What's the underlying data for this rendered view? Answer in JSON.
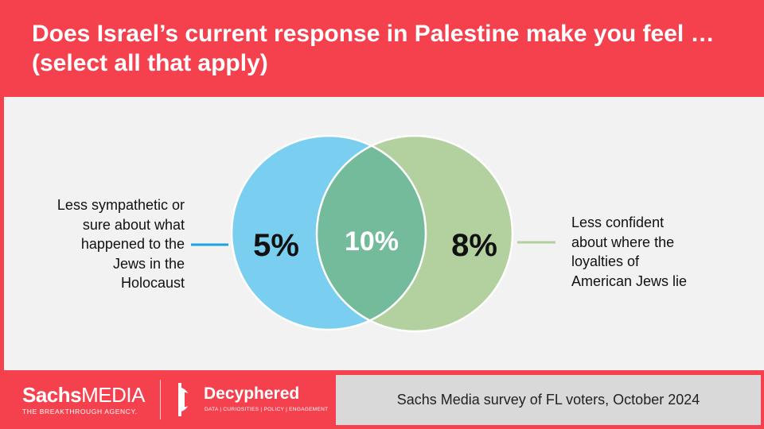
{
  "title": "Does Israel’s current response in Palestine make you feel … (select all that apply)",
  "venn": {
    "left": {
      "label_lines": [
        "Less sympathetic or",
        "sure about what",
        "happened to the",
        "Jews in the",
        "Holocaust"
      ],
      "value": "5%",
      "color": "#7acff0"
    },
    "overlap": {
      "value": "10%",
      "color": "#73bb9b"
    },
    "right": {
      "label_lines": [
        "Less confident",
        "about where the",
        "loyalties of",
        "American Jews lie"
      ],
      "value": "8%",
      "color": "#b3d19e"
    }
  },
  "footer": {
    "sachs_brand_bold": "Sachs",
    "sachs_brand_rest": "MEDIA",
    "sachs_tagline": "THE BREAKTHROUGH AGENCY.",
    "decyphered_name": "Decyphered",
    "decyphered_tagline": "DATA | CURIOSITIES | POLICY | ENGAGEMENT",
    "source": "Sachs Media survey of FL voters, October 2024"
  }
}
